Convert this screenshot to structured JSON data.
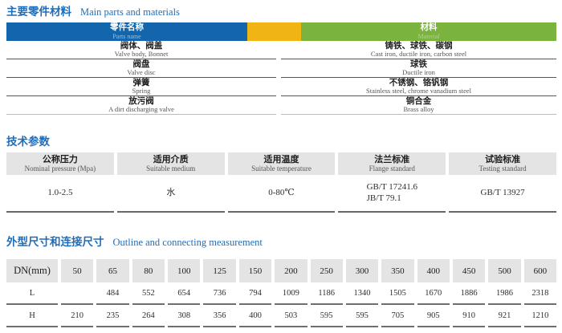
{
  "colors": {
    "title_blue": "#1f6db8",
    "bar_blue": "#1366ab",
    "bar_yellow": "#f0b414",
    "bar_green": "#7ab43e",
    "header_cell_gray": "#e4e4e4"
  },
  "materials": {
    "title_cn": "主要零件材料",
    "title_en": "Main parts and materials",
    "header": {
      "part_cn": "零件名称",
      "part_en": "Parts name",
      "mat_cn": "材料",
      "mat_en": "Material"
    },
    "rows": [
      {
        "part_cn": "阀体、阀盖",
        "part_en": "Valve body, Bonnet",
        "mat_cn": "铸铁、球铁、碳钢",
        "mat_en": "Cast iron, ductile iron, carbon steel"
      },
      {
        "part_cn": "阀盘",
        "part_en": "Valve disc",
        "mat_cn": "球铁",
        "mat_en": "Ductile iron"
      },
      {
        "part_cn": "弹簧",
        "part_en": "Spring",
        "mat_cn": "不锈钢、铬钒钢",
        "mat_en": "Stainless steel, chrome vanadium steel"
      },
      {
        "part_cn": "放污阀",
        "part_en": "A dirt discharging valve",
        "mat_cn": "铜合金",
        "mat_en": "Brass alloy"
      }
    ]
  },
  "tech": {
    "title_cn": "技术参数",
    "columns": [
      {
        "cn": "公称压力",
        "en": "Nominal pressure (Mpa)",
        "value": "1.0-2.5"
      },
      {
        "cn": "适用介质",
        "en": "Suitable medium",
        "value": "水"
      },
      {
        "cn": "适用温度",
        "en": "Suitable temperature",
        "value": "0-80℃"
      },
      {
        "cn": "法兰标准",
        "en": "Flange standard",
        "value": "GB/T 17241.6",
        "value2": "JB/T 79.1"
      },
      {
        "cn": "试验标准",
        "en": "Testing standard",
        "value": "GB/T 13927"
      }
    ]
  },
  "dimensions": {
    "title_cn": "外型尺寸和连接尺寸",
    "title_en": "Outline and connecting measurement",
    "dn_label": "DN(mm)",
    "l_label": "L",
    "h_label": "H",
    "dn": [
      "50",
      "65",
      "80",
      "100",
      "125",
      "150",
      "200",
      "250",
      "300",
      "350",
      "400",
      "450",
      "500",
      "600"
    ],
    "l": [
      "",
      "484",
      "552",
      "654",
      "736",
      "794",
      "1009",
      "1186",
      "1340",
      "1505",
      "1670",
      "1886",
      "1986",
      "2318"
    ],
    "h": [
      "210",
      "235",
      "264",
      "308",
      "356",
      "400",
      "503",
      "595",
      "595",
      "705",
      "905",
      "910",
      "921",
      "1210"
    ]
  }
}
